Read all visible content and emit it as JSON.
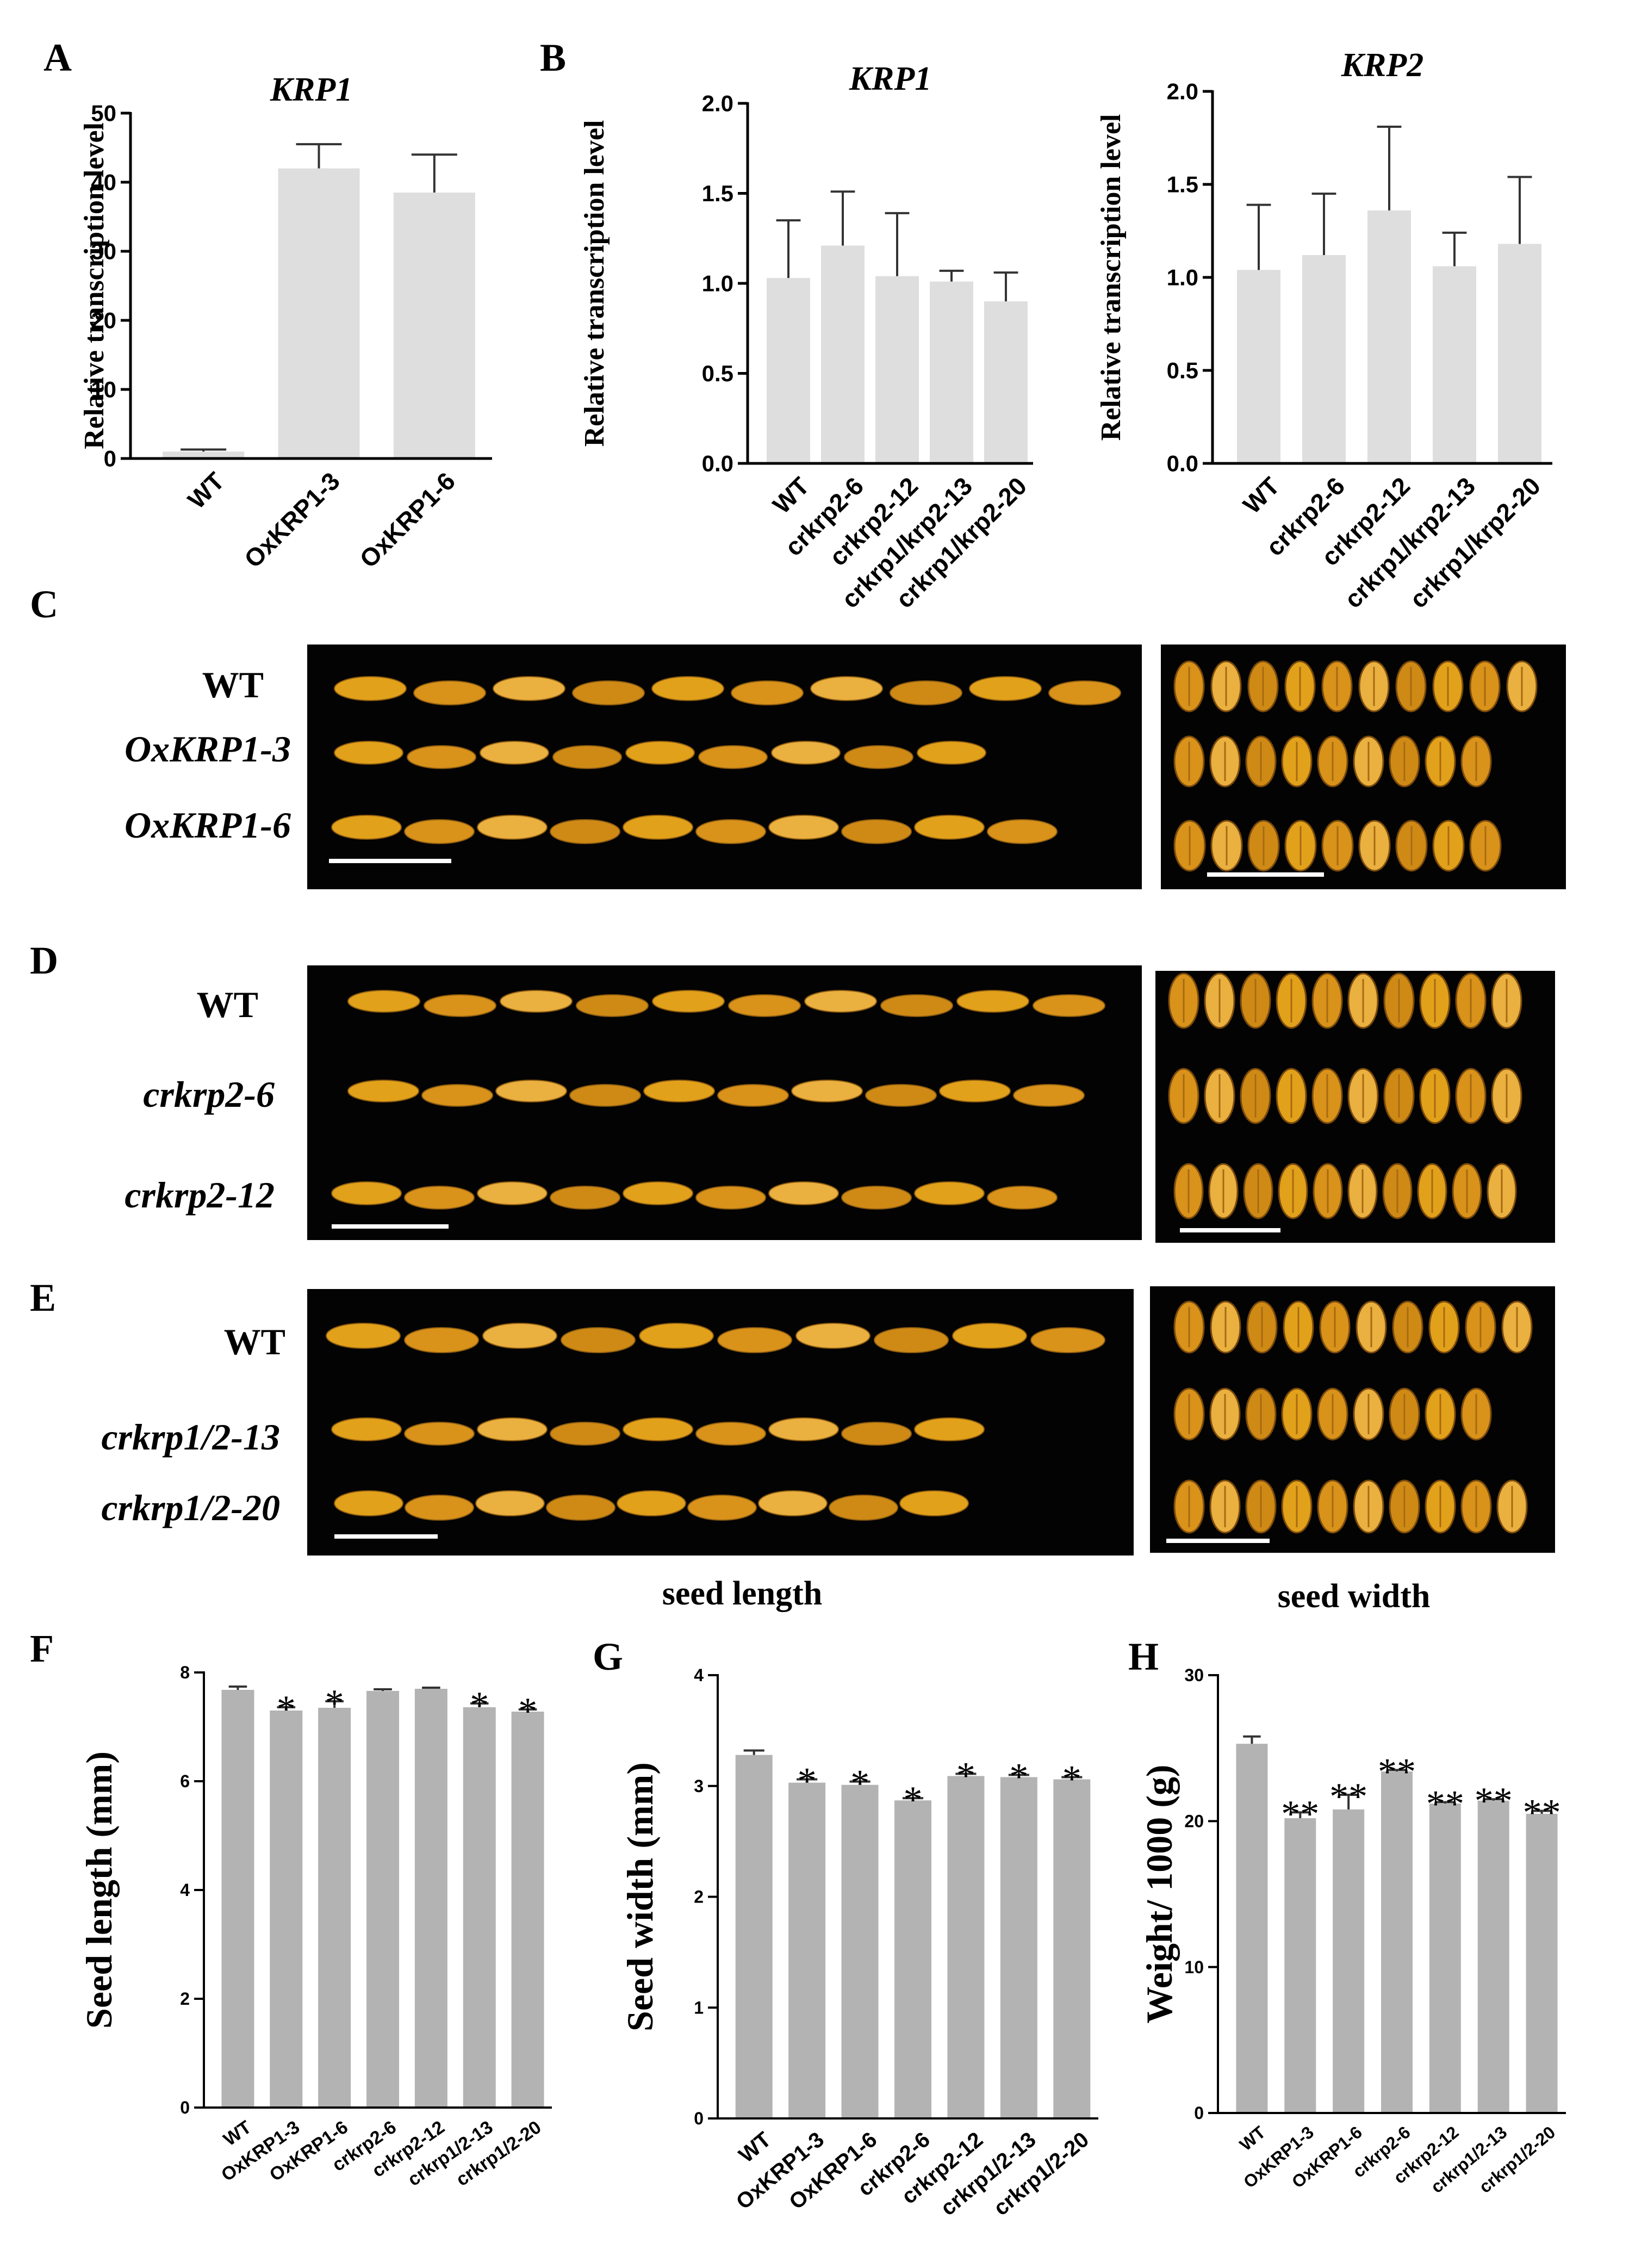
{
  "figure": {
    "panel_letters": [
      "A",
      "B",
      "C",
      "D",
      "E",
      "F",
      "G",
      "H"
    ],
    "photo_section_labels": {
      "length": "seed length",
      "width": "seed width"
    },
    "photo_rows": {
      "C": [
        "WT",
        "OxKRP1-3",
        "OxKRP1-6"
      ],
      "D": [
        "WT",
        "crkrp2-6",
        "crkrp2-12"
      ],
      "E": [
        "WT",
        "crkrp1/2-13",
        "crkrp1/2-20"
      ]
    },
    "colors": {
      "bar_light": "#dedede",
      "bar_gray": "#b3b3b3",
      "seed": "#e2a11a",
      "photo_bg": "#030303",
      "axis": "#000000"
    }
  },
  "chart_data": [
    {
      "panel": "A",
      "type": "bar",
      "title": "KRP1",
      "ylabel": "Relative transcription level",
      "xlabel": "",
      "ylim": [
        0,
        50
      ],
      "yticks": [
        "0",
        "10",
        "20",
        "30",
        "40",
        "50"
      ],
      "categories": [
        "WT",
        "OxKRP1-3",
        "OxKRP1-6"
      ],
      "values": [
        1.0,
        42.0,
        38.5
      ],
      "errors": [
        0.3,
        3.5,
        5.5
      ],
      "annotations": [
        "",
        "",
        ""
      ]
    },
    {
      "panel": "B1",
      "type": "bar",
      "title": "KRP1",
      "ylabel": "Relative transcription level",
      "xlabel": "",
      "ylim": [
        0,
        2.0
      ],
      "yticks": [
        "0.0",
        "0.5",
        "1.0",
        "1.5",
        "2.0"
      ],
      "categories": [
        "WT",
        "crkrp2-6",
        "crkrp2-12",
        "crkrp1/krp2-13",
        "crkrp1/krp2-20"
      ],
      "values": [
        1.03,
        1.21,
        1.04,
        1.01,
        0.9
      ],
      "errors": [
        0.32,
        0.3,
        0.35,
        0.06,
        0.16
      ],
      "annotations": [
        "",
        "",
        "",
        "",
        ""
      ]
    },
    {
      "panel": "B2",
      "type": "bar",
      "title": "KRP2",
      "ylabel": "Relative transcription level",
      "xlabel": "",
      "ylim": [
        0,
        2.0
      ],
      "yticks": [
        "0.0",
        "0.5",
        "1.0",
        "1.5",
        "2.0"
      ],
      "categories": [
        "WT",
        "crkrp2-6",
        "crkrp2-12",
        "crkrp1/krp2-13",
        "crkrp1/krp2-20"
      ],
      "values": [
        1.04,
        1.12,
        1.36,
        1.06,
        1.18
      ],
      "errors": [
        0.35,
        0.33,
        0.45,
        0.18,
        0.36
      ],
      "annotations": [
        "",
        "",
        "",
        "",
        ""
      ]
    },
    {
      "panel": "F",
      "type": "bar",
      "title": "",
      "ylabel": "Seed length (mm)",
      "xlabel": "",
      "ylim": [
        0,
        8
      ],
      "yticks": [
        "0",
        "2",
        "4",
        "6",
        "8"
      ],
      "categories": [
        "WT",
        "OxKRP1-3",
        "OxKRP1-6",
        "crkrp2-6",
        "crkrp2-12",
        "crkrp1/2-13",
        "crkrp1/2-20"
      ],
      "values": [
        7.68,
        7.3,
        7.35,
        7.66,
        7.7,
        7.36,
        7.28
      ],
      "errors": [
        0.06,
        0.06,
        0.12,
        0.03,
        0.02,
        0.07,
        0.04
      ],
      "annotations": [
        "",
        "*",
        "*",
        "",
        "",
        "*",
        "*"
      ]
    },
    {
      "panel": "G",
      "type": "bar",
      "title": "",
      "ylabel": "Seed width (mm)",
      "xlabel": "",
      "ylim": [
        0,
        4
      ],
      "yticks": [
        "0",
        "1",
        "2",
        "3",
        "4"
      ],
      "categories": [
        "WT",
        "OxKRP1-3",
        "OxKRP1-6",
        "crkrp2-6",
        "crkrp2-12",
        "crkrp1/2-13",
        "crkrp1/2-20"
      ],
      "values": [
        3.28,
        3.03,
        3.01,
        2.87,
        3.09,
        3.08,
        3.06
      ],
      "errors": [
        0.04,
        0.03,
        0.03,
        0.02,
        0.02,
        0.02,
        0.02
      ],
      "annotations": [
        "",
        "*",
        "*",
        "*",
        "*",
        "*",
        "*"
      ]
    },
    {
      "panel": "H",
      "type": "bar",
      "title": "",
      "ylabel": "Weight/ 1000 (g)",
      "xlabel": "",
      "ylim": [
        0,
        30
      ],
      "yticks": [
        "0",
        "10",
        "20",
        "30"
      ],
      "categories": [
        "WT",
        "OxKRP1-3",
        "OxKRP1-6",
        "crkrp2-6",
        "crkrp2-12",
        "crkrp1/2-13",
        "crkrp1/2-20"
      ],
      "values": [
        25.3,
        20.2,
        20.8,
        23.4,
        21.2,
        21.4,
        20.5
      ],
      "errors": [
        0.5,
        0.4,
        1.0,
        0.1,
        0.1,
        0.1,
        0.2
      ],
      "annotations": [
        "",
        "**",
        "**",
        "**",
        "**",
        "**",
        "**"
      ]
    }
  ]
}
